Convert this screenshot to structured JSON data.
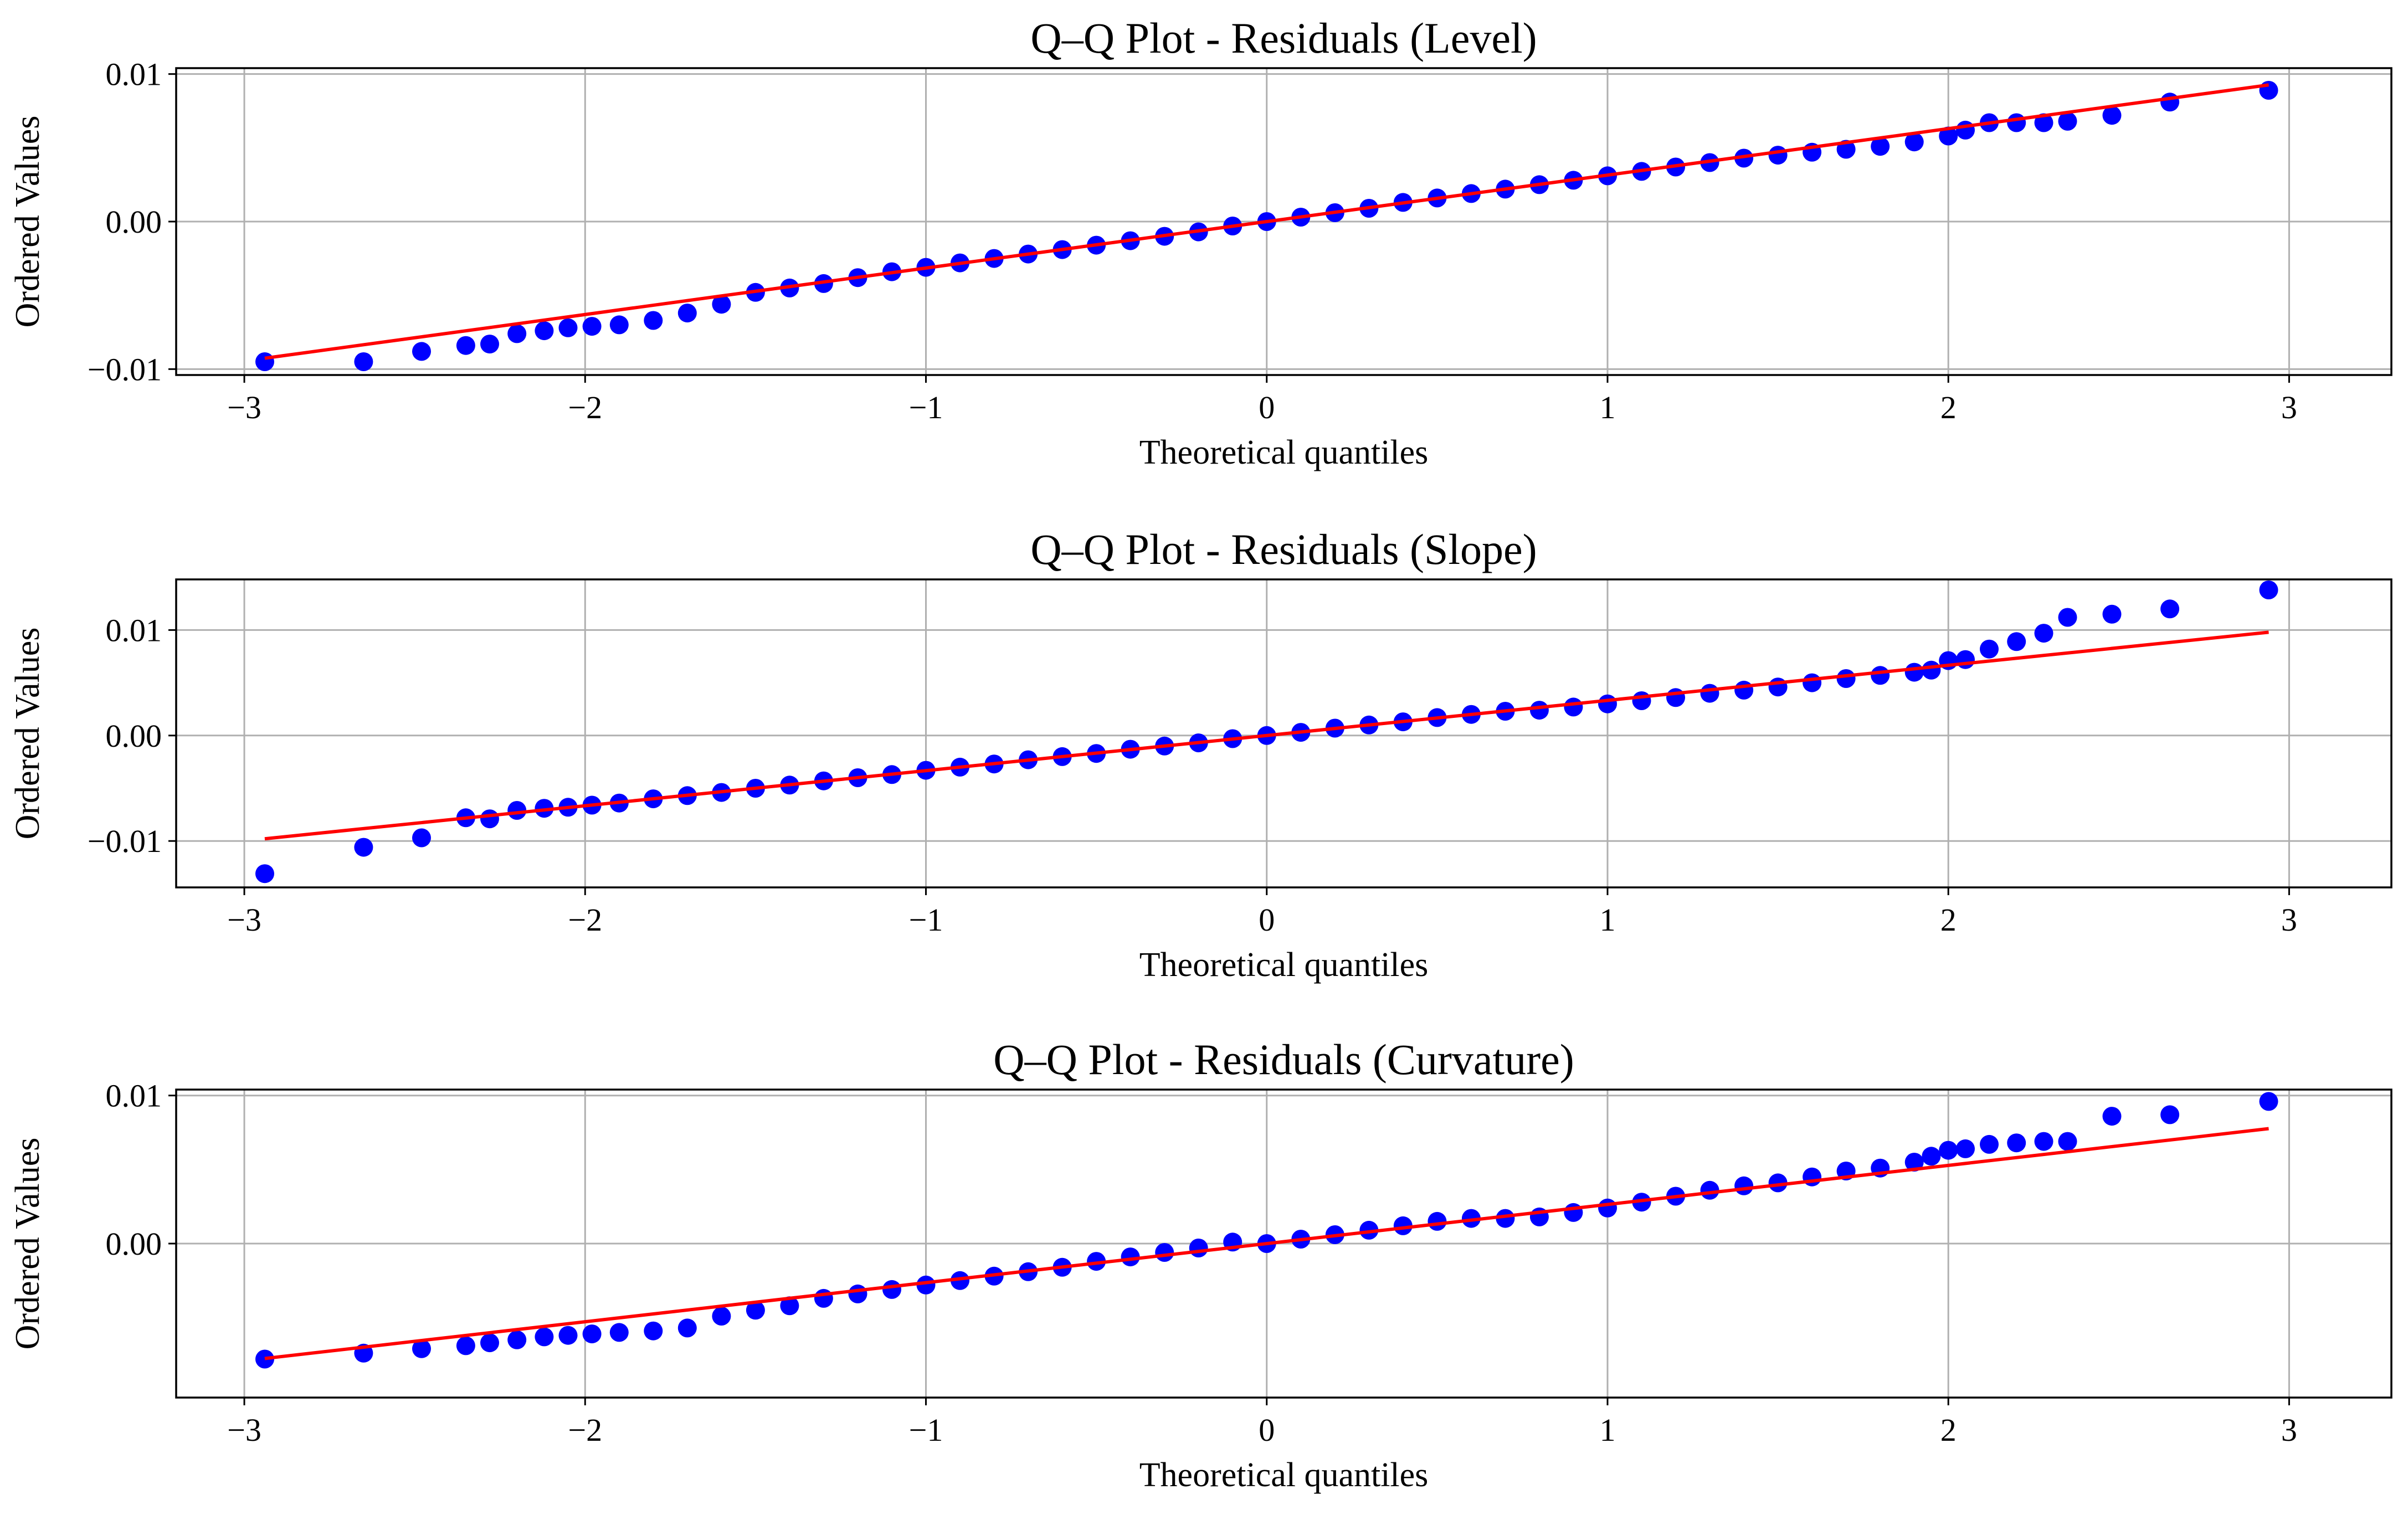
{
  "figure": {
    "colors": {
      "points": "#0000ff",
      "line": "#ff0000",
      "grid": "#b0b0b0",
      "axes": "#000000"
    }
  },
  "chart_data": [
    {
      "type": "scatter",
      "title": "Q–Q Plot - Residuals (Level)",
      "xlabel": "Theoretical quantiles",
      "ylabel": "Ordered Values",
      "xlim": [
        -3.2,
        3.3
      ],
      "ylim": [
        -0.0104,
        0.0104
      ],
      "xticks": [
        -3,
        -2,
        -1,
        0,
        1,
        2,
        3
      ],
      "xtick_labels": [
        "−3",
        "−2",
        "−1",
        "0",
        "1",
        "2",
        "3"
      ],
      "yticks": [
        -0.01,
        0.0,
        0.01
      ],
      "ytick_labels": [
        "−0.01",
        "0.00",
        "0.01"
      ],
      "grid": true,
      "fit_line": {
        "slope": 0.00315,
        "intercept": 0.0,
        "x_range": [
          -2.94,
          2.94
        ]
      },
      "series": [
        {
          "type": "scatter",
          "x": [
            -2.94,
            -2.65,
            -2.48,
            -2.35,
            -2.28,
            -2.2,
            -2.12,
            -2.05,
            -1.98,
            -1.9,
            -1.8,
            -1.7,
            -1.6,
            -1.5,
            -1.4,
            -1.3,
            -1.2,
            -1.1,
            -1.0,
            -0.9,
            -0.8,
            -0.7,
            -0.6,
            -0.5,
            -0.4,
            -0.3,
            -0.2,
            -0.1,
            0.0,
            0.1,
            0.2,
            0.3,
            0.4,
            0.5,
            0.6,
            0.7,
            0.8,
            0.9,
            1.0,
            1.1,
            1.2,
            1.3,
            1.4,
            1.5,
            1.6,
            1.7,
            1.8,
            1.9,
            2.0,
            2.05,
            2.12,
            2.2,
            2.28,
            2.35,
            2.48,
            2.65,
            2.94
          ],
          "y": [
            -0.0095,
            -0.0095,
            -0.0088,
            -0.0084,
            -0.0083,
            -0.0076,
            -0.0074,
            -0.0072,
            -0.0071,
            -0.007,
            -0.0067,
            -0.0062,
            -0.0056,
            -0.0048,
            -0.0045,
            -0.0042,
            -0.0038,
            -0.0034,
            -0.0031,
            -0.0028,
            -0.0025,
            -0.0022,
            -0.0019,
            -0.0016,
            -0.0013,
            -0.001,
            -0.0007,
            -0.0003,
            0.0,
            0.0003,
            0.0006,
            0.0009,
            0.0013,
            0.0016,
            0.0019,
            0.0022,
            0.0025,
            0.0028,
            0.0031,
            0.0034,
            0.0037,
            0.004,
            0.0043,
            0.0045,
            0.0047,
            0.0049,
            0.0051,
            0.0054,
            0.0058,
            0.0062,
            0.0067,
            0.0067,
            0.0067,
            0.0068,
            0.0072,
            0.0081,
            0.0089
          ]
        }
      ]
    },
    {
      "type": "scatter",
      "title": "Q–Q Plot - Residuals (Slope)",
      "xlabel": "Theoretical quantiles",
      "ylabel": "Ordered Values",
      "xlim": [
        -3.2,
        3.3
      ],
      "ylim": [
        -0.0144,
        0.0148
      ],
      "xticks": [
        -3,
        -2,
        -1,
        0,
        1,
        2,
        3
      ],
      "xtick_labels": [
        "−3",
        "−2",
        "−1",
        "0",
        "1",
        "2",
        "3"
      ],
      "yticks": [
        -0.01,
        0.0,
        0.01
      ],
      "ytick_labels": [
        "−0.01",
        "0.00",
        "0.01"
      ],
      "grid": true,
      "fit_line": {
        "slope": 0.00333,
        "intercept": 0.0,
        "x_range": [
          -2.94,
          2.94
        ]
      },
      "series": [
        {
          "type": "scatter",
          "x": [
            -2.94,
            -2.65,
            -2.48,
            -2.35,
            -2.28,
            -2.2,
            -2.12,
            -2.05,
            -1.98,
            -1.9,
            -1.8,
            -1.7,
            -1.6,
            -1.5,
            -1.4,
            -1.3,
            -1.2,
            -1.1,
            -1.0,
            -0.9,
            -0.8,
            -0.7,
            -0.6,
            -0.5,
            -0.4,
            -0.3,
            -0.2,
            -0.1,
            0.0,
            0.1,
            0.2,
            0.3,
            0.4,
            0.5,
            0.6,
            0.7,
            0.8,
            0.9,
            1.0,
            1.1,
            1.2,
            1.3,
            1.4,
            1.5,
            1.6,
            1.7,
            1.8,
            1.9,
            1.95,
            2.0,
            2.05,
            2.12,
            2.2,
            2.28,
            2.35,
            2.48,
            2.65,
            2.94
          ],
          "y": [
            -0.0131,
            -0.0106,
            -0.0097,
            -0.0078,
            -0.0079,
            -0.0071,
            -0.0069,
            -0.0068,
            -0.0066,
            -0.0064,
            -0.006,
            -0.0057,
            -0.0054,
            -0.005,
            -0.0047,
            -0.0043,
            -0.004,
            -0.0037,
            -0.0033,
            -0.003,
            -0.0027,
            -0.0023,
            -0.002,
            -0.0017,
            -0.0013,
            -0.001,
            -0.0007,
            -0.0003,
            0.0,
            0.0003,
            0.0007,
            0.001,
            0.0013,
            0.0017,
            0.002,
            0.0023,
            0.0024,
            0.0027,
            0.003,
            0.0033,
            0.0036,
            0.004,
            0.0043,
            0.0046,
            0.005,
            0.0054,
            0.0057,
            0.006,
            0.0062,
            0.0071,
            0.0072,
            0.0082,
            0.0089,
            0.0097,
            0.0112,
            0.0115,
            0.012,
            0.0138
          ]
        }
      ]
    },
    {
      "type": "scatter",
      "title": "Q–Q Plot - Residuals (Curvature)",
      "xlabel": "Theoretical quantiles",
      "ylabel": "Ordered Values",
      "xlim": [
        -3.2,
        3.3
      ],
      "ylim": [
        -0.0104,
        0.0104
      ],
      "xticks": [
        -3,
        -2,
        -1,
        0,
        1,
        2,
        3
      ],
      "xtick_labels": [
        "−3",
        "−2",
        "−1",
        "0",
        "1",
        "2",
        "3"
      ],
      "yticks": [
        0.0,
        0.01
      ],
      "ytick_labels": [
        "0.00",
        "0.01"
      ],
      "grid": true,
      "fit_line": {
        "slope": 0.00264,
        "intercept": 0.0,
        "x_range": [
          -2.94,
          2.94
        ]
      },
      "series": [
        {
          "type": "scatter",
          "x": [
            -2.94,
            -2.65,
            -2.48,
            -2.35,
            -2.28,
            -2.2,
            -2.12,
            -2.05,
            -1.98,
            -1.9,
            -1.8,
            -1.7,
            -1.6,
            -1.5,
            -1.4,
            -1.3,
            -1.2,
            -1.1,
            -1.0,
            -0.9,
            -0.8,
            -0.7,
            -0.6,
            -0.5,
            -0.4,
            -0.3,
            -0.2,
            -0.1,
            0.0,
            0.1,
            0.2,
            0.3,
            0.4,
            0.5,
            0.6,
            0.7,
            0.8,
            0.9,
            1.0,
            1.1,
            1.2,
            1.3,
            1.4,
            1.5,
            1.6,
            1.7,
            1.8,
            1.9,
            1.95,
            2.0,
            2.05,
            2.12,
            2.2,
            2.28,
            2.35,
            2.48,
            2.65,
            2.94
          ],
          "y": [
            -0.0078,
            -0.0074,
            -0.0071,
            -0.0069,
            -0.0067,
            -0.0065,
            -0.0063,
            -0.0062,
            -0.0061,
            -0.006,
            -0.0059,
            -0.0057,
            -0.0049,
            -0.0045,
            -0.0042,
            -0.0037,
            -0.0034,
            -0.0031,
            -0.0028,
            -0.0025,
            -0.0022,
            -0.0019,
            -0.0016,
            -0.0012,
            -0.0009,
            -0.0006,
            -0.0003,
            0.0001,
            0.0,
            0.0003,
            0.0006,
            0.0009,
            0.0012,
            0.0015,
            0.0017,
            0.0017,
            0.0018,
            0.0021,
            0.0024,
            0.0028,
            0.0032,
            0.0036,
            0.0039,
            0.0041,
            0.0045,
            0.0049,
            0.0051,
            0.0055,
            0.0059,
            0.0063,
            0.0064,
            0.0067,
            0.0068,
            0.0069,
            0.0069,
            0.0086,
            0.0087,
            0.0096
          ]
        }
      ]
    }
  ]
}
